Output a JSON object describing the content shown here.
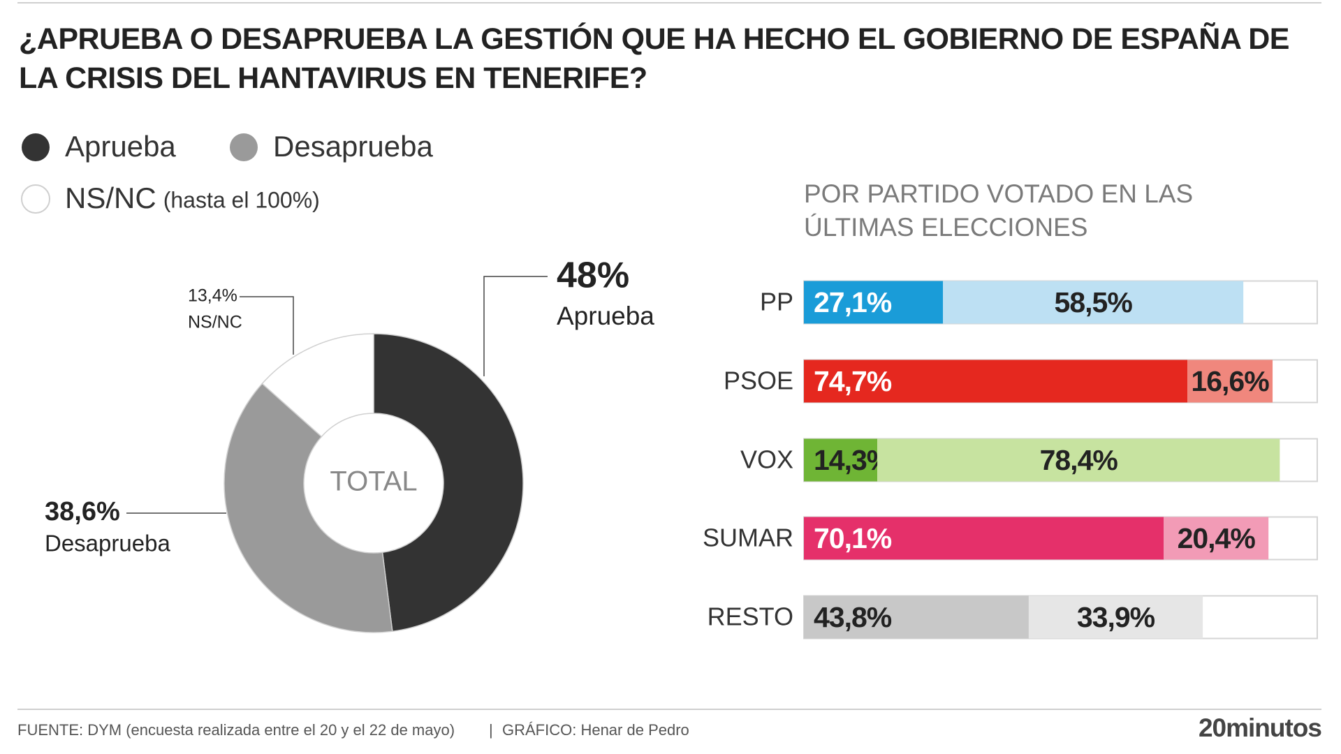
{
  "title": "¿APRUEBA O DESAPRUEBA LA GESTIÓN QUE HA HECHO EL GOBIERNO DE ESPAÑA DE LA CRISIS DEL HANTAVIRUS EN TENERIFE?",
  "legend_note": "(hasta el 100%)",
  "footer": {
    "source": "FUENTE: DYM (encuesta realizada entre el 20 y el 22 de mayo)",
    "separator": "|",
    "credit": "GRÁFICO: Henar de Pedro",
    "logo": "20minutos"
  },
  "chart_data": [
    {
      "type": "donut",
      "center_label": "TOTAL",
      "categories": [
        "Aprueba",
        "Desaprueba",
        "NS/NC"
      ],
      "values": [
        48,
        38.6,
        13.4
      ],
      "value_labels": [
        "48%",
        "38,6%",
        "13,4%"
      ],
      "colors": [
        "#333333",
        "#9a9a9a",
        "#ffffff"
      ]
    },
    {
      "type": "stacked-bar",
      "subtitle": "POR PARTIDO VOTADO EN LAS ÚLTIMAS ELECCIONES",
      "categories": [
        "PP",
        "PSOE",
        "VOX",
        "SUMAR",
        "RESTO"
      ],
      "xlim": [
        0,
        100
      ],
      "series": [
        {
          "name": "Aprueba",
          "values": [
            27.1,
            74.7,
            14.3,
            70.1,
            43.8
          ],
          "value_labels": [
            "27,1%",
            "74,7%",
            "14,3%",
            "70,1%",
            "43,8%"
          ],
          "colors": [
            "#1a9cd8",
            "#e5281f",
            "#6fb535",
            "#e5306a",
            "#c8c8c8"
          ],
          "label_colors": [
            "#ffffff",
            "#ffffff",
            "#222222",
            "#ffffff",
            "#222222"
          ]
        },
        {
          "name": "Desaprueba",
          "values": [
            58.5,
            16.6,
            78.4,
            20.4,
            33.9
          ],
          "value_labels": [
            "58,5%",
            "16,6%",
            "78,4%",
            "20,4%",
            "33,9%"
          ],
          "colors": [
            "#bde0f3",
            "#f0877d",
            "#c7e3a0",
            "#f29bb6",
            "#e6e6e6"
          ],
          "label_colors": [
            "#222222",
            "#222222",
            "#222222",
            "#222222",
            "#222222"
          ]
        }
      ]
    }
  ]
}
